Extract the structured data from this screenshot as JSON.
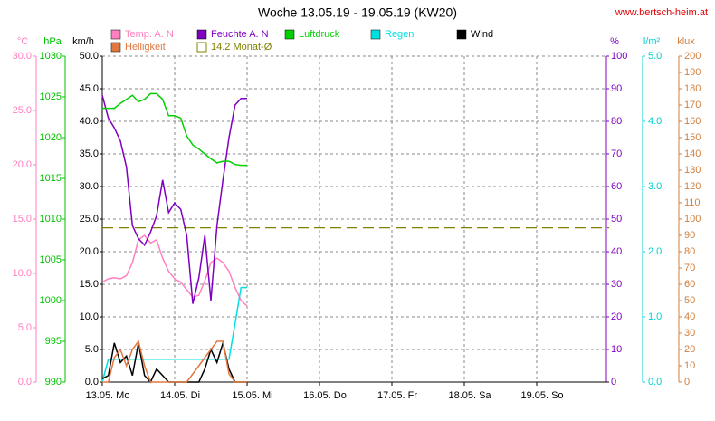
{
  "chart_data": {
    "type": "line",
    "title": "Woche 13.05.19 - 19.05.19 (KW20)",
    "site": "www.bertsch-heim.at",
    "x": [
      0,
      2,
      4,
      6,
      8,
      10,
      12,
      14,
      16,
      18,
      20,
      22,
      24,
      26,
      28,
      30,
      32,
      34,
      36,
      38,
      40,
      42,
      44,
      46,
      48
    ],
    "xlim": [
      0,
      168
    ],
    "xticks": [
      {
        "value": 0,
        "label": "13.05. Mo"
      },
      {
        "value": 24,
        "label": "14.05. Di"
      },
      {
        "value": 48,
        "label": "15.05. Mi"
      },
      {
        "value": 72,
        "label": "16.05. Do"
      },
      {
        "value": 96,
        "label": "17.05. Fr"
      },
      {
        "value": 120,
        "label": "18.05. Sa"
      },
      {
        "value": 144,
        "label": "19.05. So"
      }
    ],
    "grid": true,
    "axes": [
      {
        "label": "°C",
        "color": "#ff80c0",
        "side": "left",
        "lim": [
          0,
          30
        ],
        "ticks": [
          {
            "value": 0,
            "label": "0.0"
          },
          {
            "value": 5,
            "label": "5.0"
          },
          {
            "value": 10,
            "label": "10.0"
          },
          {
            "value": 15,
            "label": "15.0"
          },
          {
            "value": 20,
            "label": "20.0"
          },
          {
            "value": 25,
            "label": "25.0"
          },
          {
            "value": 30,
            "label": "30.0"
          }
        ]
      },
      {
        "label": "hPa",
        "color": "#00c000",
        "side": "left",
        "lim": [
          990,
          1030
        ],
        "ticks": [
          990,
          995,
          1000,
          1005,
          1010,
          1015,
          1020,
          1025,
          1030
        ]
      },
      {
        "label": "km/h",
        "color": "#000000",
        "side": "left",
        "lim": [
          0,
          50
        ],
        "ticks": [
          {
            "value": 0,
            "label": "0.0"
          },
          {
            "value": 5,
            "label": "5.0"
          },
          {
            "value": 10,
            "label": "10.0"
          },
          {
            "value": 15,
            "label": "15.0"
          },
          {
            "value": 20,
            "label": "20.0"
          },
          {
            "value": 25,
            "label": "25.0"
          },
          {
            "value": 30,
            "label": "30.0"
          },
          {
            "value": 35,
            "label": "35.0"
          },
          {
            "value": 40,
            "label": "40.0"
          },
          {
            "value": 45,
            "label": "45.0"
          },
          {
            "value": 50,
            "label": "50.0"
          }
        ]
      },
      {
        "label": "%",
        "color": "#8000c0",
        "side": "right",
        "lim": [
          0,
          100
        ],
        "ticks": [
          0,
          10,
          20,
          30,
          40,
          50,
          60,
          70,
          80,
          90,
          100
        ]
      },
      {
        "label": "l/m²",
        "color": "#00d0d0",
        "side": "right",
        "lim": [
          0,
          5
        ],
        "ticks": [
          {
            "value": 0,
            "label": "0.0"
          },
          {
            "value": 1,
            "label": "1.0"
          },
          {
            "value": 2,
            "label": "2.0"
          },
          {
            "value": 3,
            "label": "3.0"
          },
          {
            "value": 4,
            "label": "4.0"
          },
          {
            "value": 5,
            "label": "5.0"
          }
        ]
      },
      {
        "label": "klux",
        "color": "#d08040",
        "side": "right",
        "lim": [
          0,
          200
        ],
        "ticks": [
          0,
          10,
          20,
          30,
          40,
          50,
          60,
          70,
          80,
          90,
          100,
          110,
          120,
          130,
          140,
          150,
          160,
          170,
          180,
          190,
          200
        ]
      }
    ],
    "series": [
      {
        "name": "Temp. A. N",
        "color": "#ff80c0",
        "axis": 0,
        "values": [
          9.2,
          9.5,
          9.6,
          9.5,
          9.8,
          11,
          13.1,
          13.5,
          12.8,
          13.1,
          11.4,
          10.2,
          9.5,
          9.2,
          8.5,
          7.8,
          8.0,
          9.3,
          11,
          11.4,
          11,
          10.2,
          8.7,
          7.5,
          7.0
        ]
      },
      {
        "name": "Feuchte A. N",
        "color": "#8000c0",
        "axis": 3,
        "values": [
          88,
          81,
          78,
          74,
          66,
          48,
          44,
          42,
          46,
          51,
          62,
          52,
          55,
          53,
          45,
          24,
          32,
          45,
          25,
          48,
          62,
          75,
          85,
          87,
          87
        ]
      },
      {
        "name": "Luftdruck",
        "color": "#00d000",
        "axis": 1,
        "values": [
          1023.6,
          1023.6,
          1023.6,
          1024.2,
          1024.7,
          1025.2,
          1024.4,
          1024.7,
          1025.4,
          1025.4,
          1024.7,
          1022.7,
          1022.7,
          1022.4,
          1020.2,
          1019.1,
          1018.6,
          1018,
          1017.4,
          1016.9,
          1017.1,
          1017.1,
          1016.7,
          1016.6,
          1016.6
        ]
      },
      {
        "name": "Regen",
        "color": "#00e0e0",
        "axis": 4,
        "values": [
          0,
          0.35,
          0.35,
          0.35,
          0.35,
          0.35,
          0.35,
          0.35,
          0.35,
          0.35,
          0.35,
          0.35,
          0.35,
          0.35,
          0.35,
          0.35,
          0.35,
          0.35,
          0.35,
          0.35,
          0.35,
          0.35,
          0.9,
          1.45,
          1.45
        ]
      },
      {
        "name": "Wind",
        "color": "#000000",
        "axis": 2,
        "values": [
          0.5,
          1,
          6,
          3,
          4,
          1,
          6,
          1,
          0,
          2,
          1,
          0,
          0,
          0,
          0,
          0,
          0,
          2,
          5,
          3,
          6,
          2,
          0,
          0,
          0
        ]
      },
      {
        "name": "Helligkeit",
        "color": "#e07840",
        "axis": 5,
        "values": [
          0,
          0,
          15,
          20,
          10,
          20,
          25,
          10,
          0,
          0,
          0,
          0,
          0,
          0,
          0,
          5,
          10,
          15,
          20,
          25,
          25,
          5,
          0,
          0,
          0
        ]
      }
    ],
    "reference": {
      "label": "14.2 Monat-Ø",
      "value": 14.2,
      "axis": 0,
      "color": "#808000"
    }
  }
}
